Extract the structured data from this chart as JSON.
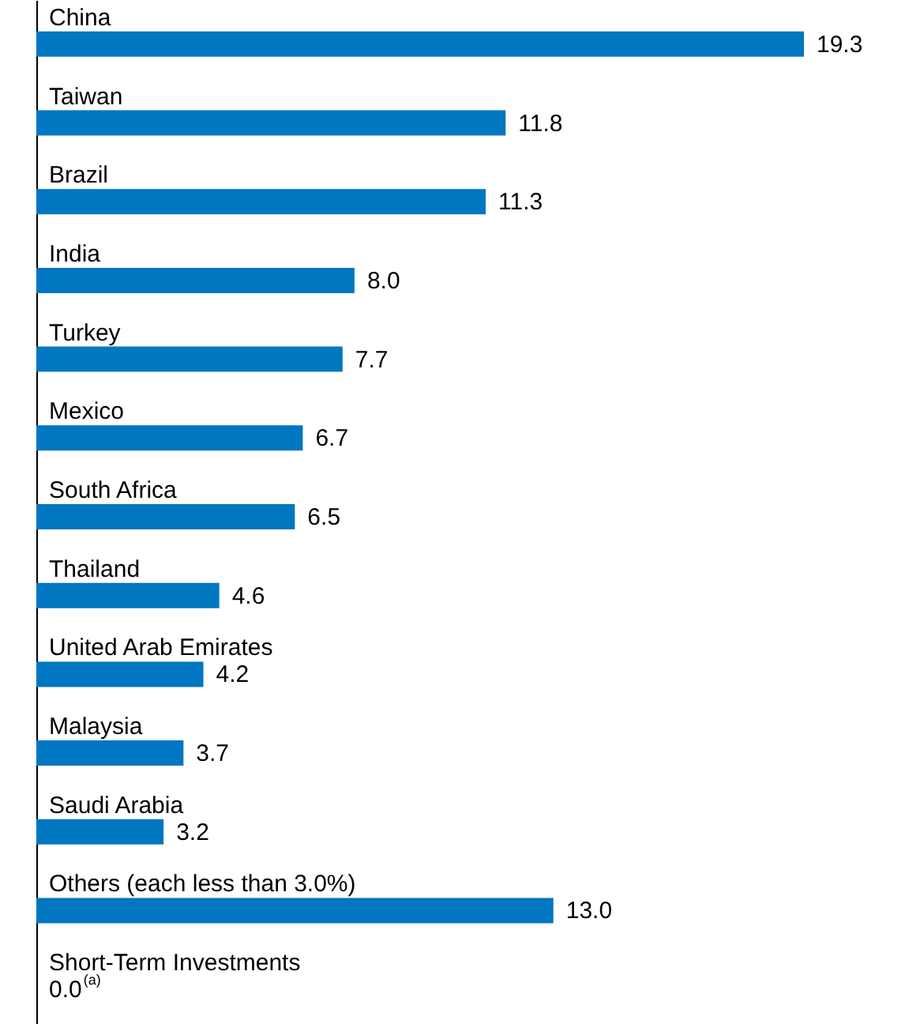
{
  "chart_data": {
    "type": "bar",
    "orientation": "horizontal",
    "categories": [
      "China",
      "Taiwan",
      "Brazil",
      "India",
      "Turkey",
      "Mexico",
      "South Africa",
      "Thailand",
      "United Arab Emirates",
      "Malaysia",
      "Saudi Arabia",
      "Others (each less than 3.0%)",
      "Short-Term Investments"
    ],
    "values": [
      19.3,
      11.8,
      11.3,
      8.0,
      7.7,
      6.7,
      6.5,
      4.6,
      4.2,
      3.7,
      3.2,
      13.0,
      0.0
    ],
    "value_labels": [
      "19.3",
      "11.8",
      "11.3",
      "8.0",
      "7.7",
      "6.7",
      "6.5",
      "4.6",
      "4.2",
      "3.7",
      "3.2",
      "13.0",
      "0.0$^{(a)}$"
    ],
    "color": "#0077c0"
  }
}
